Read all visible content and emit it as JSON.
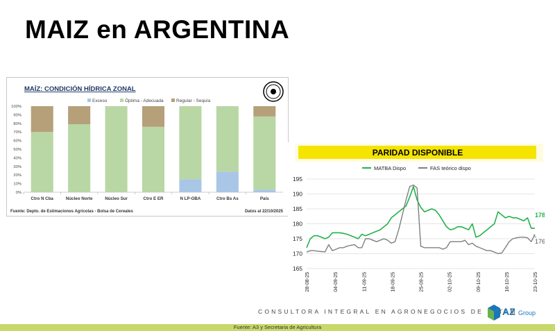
{
  "slide": {
    "title": "MAIZ en ARGENTINA",
    "footer": "CONSULTORA INTEGRAL EN AGRONEGOCIOS DE LATAM",
    "logo_text": "AZ",
    "logo_sub": "Group",
    "source_note": "Fuente: A3 y Secretaria de Agricultura"
  },
  "colors": {
    "exceso": "#a9c6e6",
    "optima": "#b8d7a4",
    "regular": "#b5a07a",
    "matba": "#22b14c",
    "fas": "#7f7f7f",
    "bar_title_bg": "#f5e400",
    "bottom_bar": "#c8d86a",
    "logo_blue": "#1b76b8",
    "logo_green": "#6ab04c"
  },
  "chart_data": [
    {
      "type": "bar",
      "stacked": true,
      "title": "MAÍZ: CONDICIÓN HÍDRICA ZONAL",
      "categories": [
        "Ctro N Cba",
        "Núcleo Norte",
        "Núcleo Sur",
        "Ctro E ER",
        "N LP-OBA",
        "Ctro Bs As",
        "País"
      ],
      "series": [
        {
          "name": "Exceso",
          "values": [
            0,
            0,
            0,
            0,
            15,
            24,
            3
          ]
        },
        {
          "name": "Óptima - Adecuada",
          "values": [
            70,
            79,
            100,
            76,
            85,
            76,
            85
          ]
        },
        {
          "name": "Regular - Sequía",
          "values": [
            30,
            21,
            0,
            24,
            0,
            0,
            12
          ]
        }
      ],
      "yticks": [
        "0%",
        "10%",
        "20%",
        "30%",
        "40%",
        "50%",
        "60%",
        "70%",
        "80%",
        "90%",
        "100%"
      ],
      "ylim": [
        0,
        100
      ],
      "legend": "top",
      "source": "Fuente: Depto. de Estimaciones Agrícolas - Bolsa de Cereales",
      "date_note": "Datos al 22/10/2025"
    },
    {
      "type": "line",
      "title": "PARIDAD DISPONIBLE",
      "xticks": [
        "28-08-25",
        "04-09-25",
        "11-09-25",
        "18-09-25",
        "25-09-25",
        "02-10-25",
        "09-10-25",
        "16-10-25",
        "23-10-25"
      ],
      "ylim": [
        165,
        195
      ],
      "yticks": [
        "165",
        "170",
        "175",
        "180",
        "185",
        "190",
        "195"
      ],
      "grid": true,
      "legend": "top",
      "series": [
        {
          "name": "MATBA Dispo",
          "last_label": "178,5",
          "values": [
            172,
            175,
            176,
            176,
            175.5,
            175,
            175.5,
            177,
            177,
            177,
            176.8,
            176.5,
            176,
            175.5,
            175,
            176.5,
            176,
            176.5,
            177,
            177.5,
            178,
            179,
            180,
            182,
            183,
            184,
            185,
            186,
            189,
            192.5,
            188,
            185.5,
            184,
            184.5,
            185,
            184.5,
            183,
            181,
            179,
            178,
            178.3,
            179,
            179,
            178.5,
            178,
            180,
            175.5,
            176,
            177,
            178,
            179,
            180,
            184,
            183,
            182,
            182.5,
            182,
            182,
            181.5,
            181,
            182,
            178.5,
            178.5
          ]
        },
        {
          "name": "FAS teórico dispo",
          "last_label": "176,4",
          "values": [
            170.5,
            171,
            171,
            170.8,
            170.7,
            170.6,
            173,
            171,
            171.5,
            172,
            172,
            172.5,
            172.8,
            173,
            172,
            172,
            175,
            175,
            174.5,
            174,
            174.5,
            175,
            174.5,
            173.5,
            174,
            178,
            183,
            188,
            192.5,
            193,
            192,
            172.5,
            172,
            172,
            172,
            172,
            172,
            171.5,
            172,
            174,
            174,
            174,
            174,
            174.5,
            173,
            173.5,
            172.5,
            172,
            171.5,
            171,
            171,
            170.5,
            170,
            170.2,
            172,
            174,
            175,
            175.3,
            175.5,
            175.5,
            175.3,
            174,
            176.4
          ]
        }
      ]
    }
  ]
}
